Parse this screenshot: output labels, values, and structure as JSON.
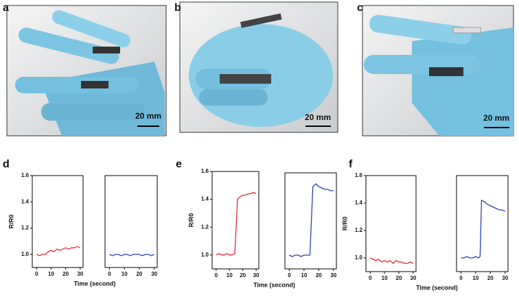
{
  "figure": {
    "panels": [
      {
        "label": "a",
        "scale_bar": "20 mm"
      },
      {
        "label": "b",
        "scale_bar": "20 mm"
      },
      {
        "label": "c",
        "scale_bar": "20 mm"
      },
      {
        "label": "d"
      },
      {
        "label": "e"
      },
      {
        "label": "f"
      }
    ]
  },
  "chart_data": [
    {
      "type": "line",
      "y_label": "R/R0",
      "x_label": "Time (second)",
      "x": [
        0,
        2,
        4,
        6,
        8,
        10,
        12,
        14,
        16,
        18,
        20,
        22,
        24,
        26,
        28,
        30
      ],
      "series": [
        {
          "color": "#e8272a",
          "values": [
            1.0,
            0.99,
            1.0,
            1.0,
            1.02,
            1.03,
            1.02,
            1.04,
            1.03,
            1.04,
            1.05,
            1.04,
            1.05,
            1.05,
            1.06,
            1.05
          ]
        }
      ],
      "xlim": [
        -3,
        32
      ],
      "ylim": [
        0.9,
        1.6
      ],
      "xticks": [
        0,
        10,
        20,
        30
      ],
      "yticks": [
        {
          "value": 1,
          "label": "1.0"
        },
        {
          "value": 1.2,
          "label": "1.2"
        },
        {
          "value": 1.4,
          "label": "1.4"
        },
        {
          "value": 1.6,
          "label": "1.6"
        }
      ]
    },
    {
      "type": "line",
      "x": [
        0,
        2,
        4,
        6,
        8,
        10,
        12,
        14,
        16,
        18,
        20,
        22,
        24,
        26,
        28,
        30
      ],
      "series": [
        {
          "color": "#2b3fb0",
          "values": [
            1.0,
            0.99,
            1.0,
            1.0,
            0.99,
            1.0,
            1.0,
            0.99,
            1.0,
            1.0,
            1.0,
            0.99,
            1.0,
            1.0,
            0.99,
            1.0
          ]
        }
      ],
      "xlim": [
        -3,
        32
      ],
      "ylim": [
        0.9,
        1.6
      ],
      "xticks": [
        0,
        10,
        20,
        30
      ]
    },
    {
      "type": "line",
      "y_label": "R/R0",
      "x_label": "Time (second)",
      "x": [
        0,
        2,
        4,
        6,
        8,
        10,
        12,
        14,
        15,
        16,
        18,
        20,
        22,
        24,
        26,
        28,
        30
      ],
      "series": [
        {
          "color": "#e8272a",
          "values": [
            1.0,
            1.01,
            1.0,
            1.0,
            1.01,
            1.0,
            1.0,
            1.01,
            1.2,
            1.4,
            1.42,
            1.43,
            1.43,
            1.44,
            1.44,
            1.45,
            1.44
          ]
        }
      ],
      "xlim": [
        -3,
        32
      ],
      "ylim": [
        0.9,
        1.6
      ],
      "xticks": [
        0,
        10,
        20,
        30
      ],
      "yticks": [
        {
          "value": 1,
          "label": "1.0"
        },
        {
          "value": 1.2,
          "label": "1.2"
        },
        {
          "value": 1.4,
          "label": "1.4"
        },
        {
          "value": 1.6,
          "label": "1.6"
        }
      ]
    },
    {
      "type": "line",
      "x": [
        0,
        2,
        4,
        6,
        8,
        10,
        12,
        14,
        15,
        16,
        18,
        20,
        22,
        24,
        26,
        28,
        30
      ],
      "series": [
        {
          "color": "#2b3fb0",
          "values": [
            1.0,
            0.99,
            1.0,
            1.0,
            0.99,
            1.0,
            1.0,
            1.0,
            1.25,
            1.5,
            1.52,
            1.5,
            1.49,
            1.48,
            1.48,
            1.47,
            1.47
          ]
        }
      ],
      "xlim": [
        -3,
        32
      ],
      "ylim": [
        0.9,
        1.6
      ],
      "xticks": [
        0,
        10,
        20,
        30
      ]
    },
    {
      "type": "line",
      "y_label": "R/R0",
      "x_label": "Time (second)",
      "x": [
        0,
        2,
        4,
        6,
        8,
        10,
        12,
        14,
        16,
        18,
        20,
        22,
        24,
        26,
        28,
        30
      ],
      "series": [
        {
          "color": "#e8272a",
          "values": [
            1.0,
            0.99,
            0.98,
            0.99,
            0.97,
            0.98,
            0.97,
            0.98,
            0.96,
            0.98,
            0.97,
            0.97,
            0.96,
            0.96,
            0.97,
            0.96
          ]
        }
      ],
      "xlim": [
        -3,
        32
      ],
      "ylim": [
        0.9,
        1.6
      ],
      "xticks": [
        0,
        10,
        20,
        30
      ],
      "yticks": [
        {
          "value": 1,
          "label": "1.0"
        },
        {
          "value": 1.2,
          "label": "1.2"
        },
        {
          "value": 1.4,
          "label": "1.4"
        },
        {
          "value": 1.6,
          "label": "1.6"
        }
      ]
    },
    {
      "type": "line",
      "x": [
        0,
        2,
        4,
        6,
        8,
        10,
        12,
        13,
        14,
        16,
        18,
        20,
        22,
        24,
        26,
        28,
        30
      ],
      "series": [
        {
          "color": "#2b3fb0",
          "values": [
            1.0,
            1.0,
            1.01,
            1.0,
            1.0,
            1.01,
            1.0,
            1.01,
            1.42,
            1.41,
            1.39,
            1.38,
            1.37,
            1.36,
            1.35,
            1.35,
            1.34
          ]
        }
      ],
      "xlim": [
        -3,
        32
      ],
      "ylim": [
        0.9,
        1.6
      ],
      "xticks": [
        0,
        10,
        20,
        30
      ]
    }
  ]
}
